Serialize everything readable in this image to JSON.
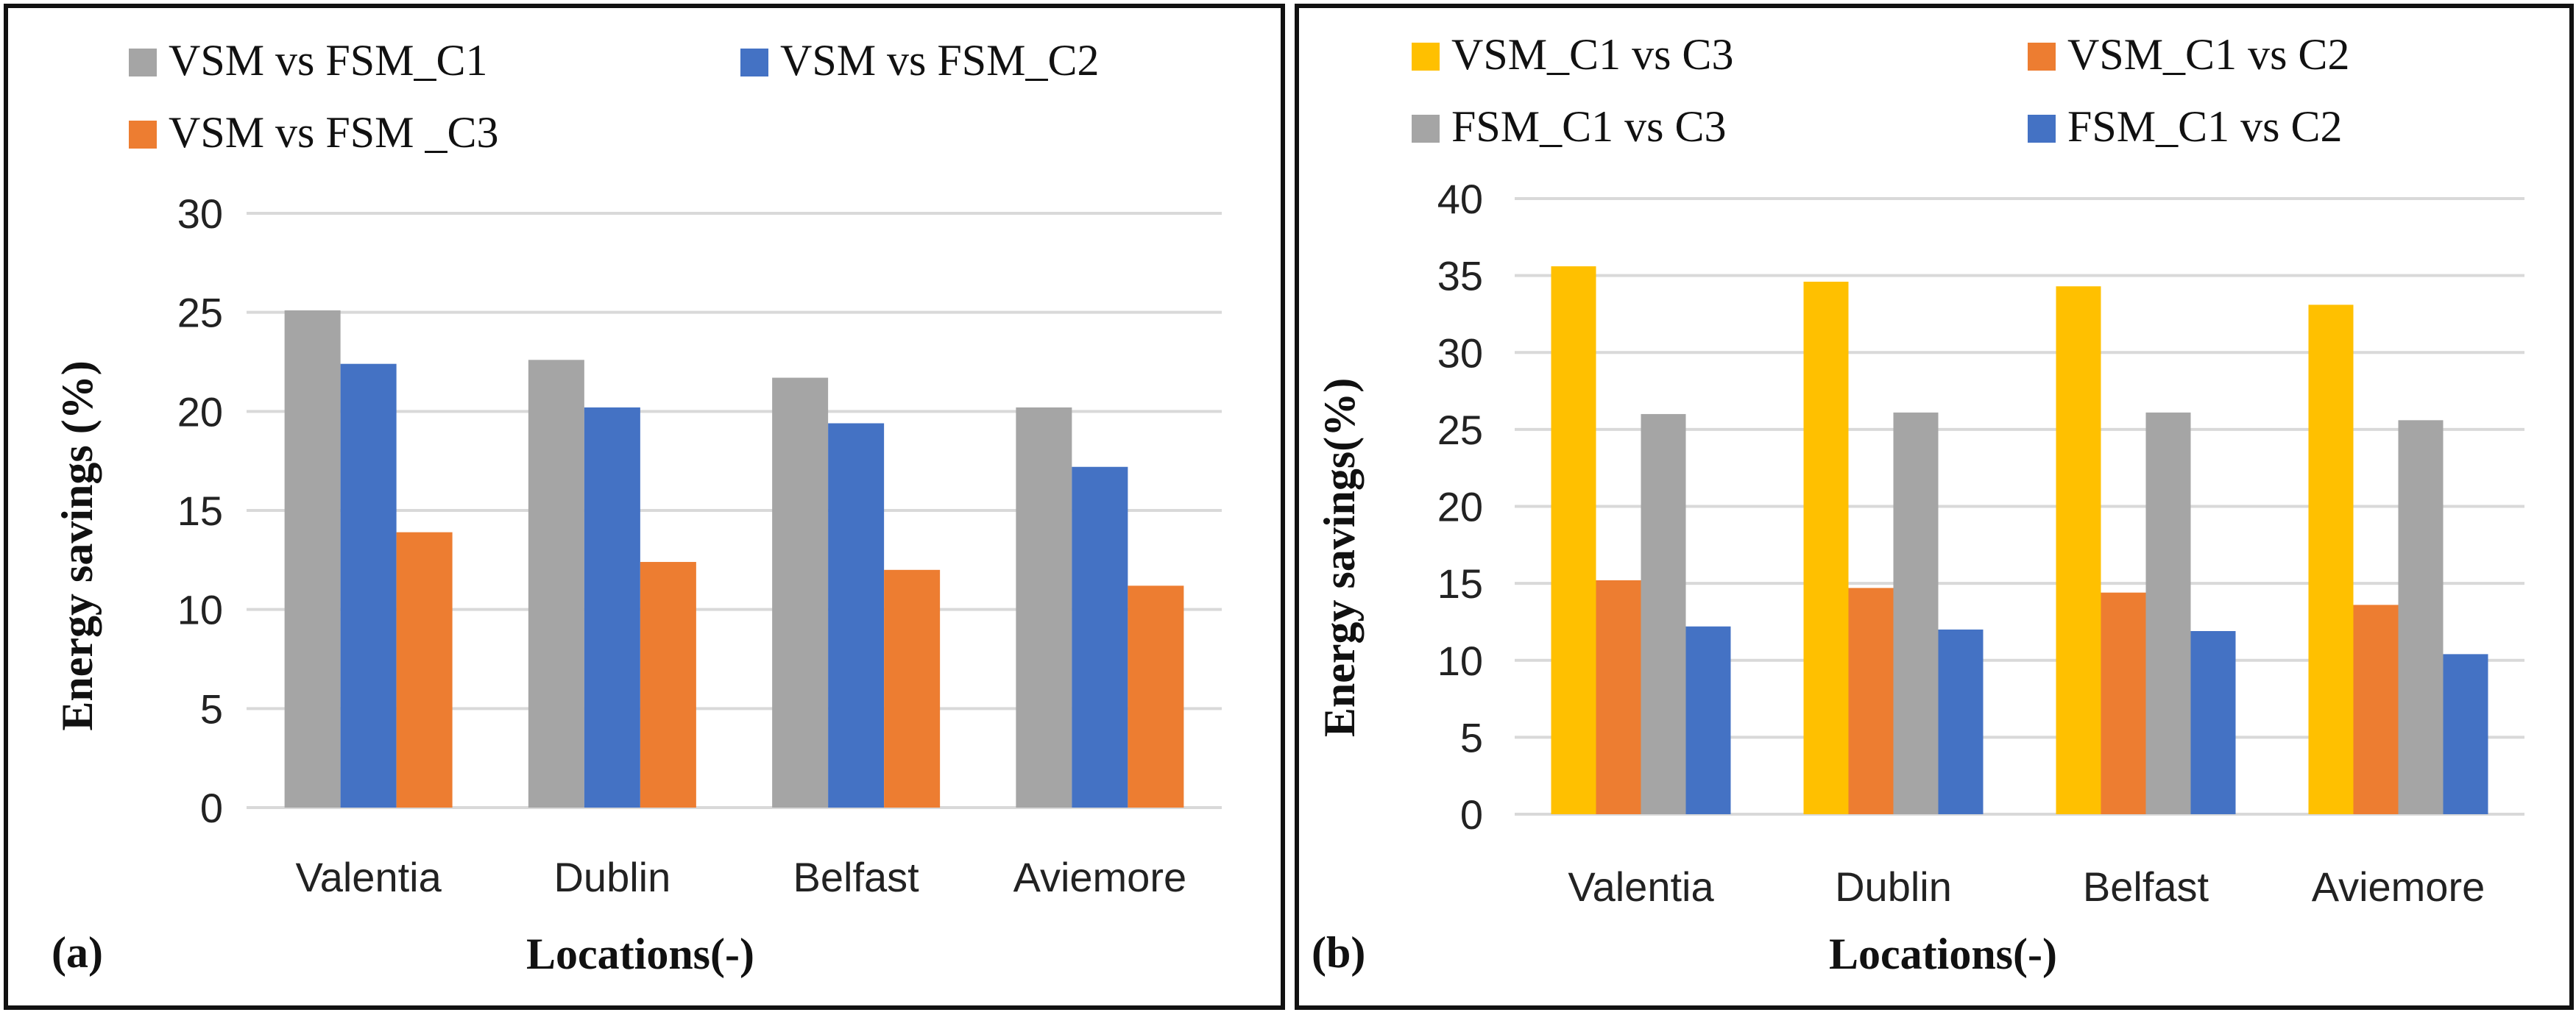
{
  "chart_data": [
    {
      "type": "bar",
      "panel_label": "(a)",
      "categories": [
        "Valentia",
        "Dublin",
        "Belfast",
        "Aviemore"
      ],
      "series": [
        {
          "name": "VSM vs FSM_C1",
          "color": "#A5A5A5",
          "values": [
            25.1,
            22.6,
            21.7,
            20.2
          ]
        },
        {
          "name": "VSM vs FSM_C2",
          "color": "#4472C4",
          "values": [
            22.4,
            20.2,
            19.4,
            17.2
          ]
        },
        {
          "name": "VSM vs FSM _C3",
          "color": "#ED7D31",
          "values": [
            13.9,
            12.4,
            12.0,
            11.2
          ]
        }
      ],
      "xlabel": "Locations(-)",
      "ylabel": "Energy savings (%)",
      "ylim": [
        0,
        30
      ],
      "yticks": [
        0,
        5,
        10,
        15,
        20,
        25,
        30
      ],
      "grid": true,
      "legend": "top"
    },
    {
      "type": "bar",
      "panel_label": "(b)",
      "categories": [
        "Valentia",
        "Dublin",
        "Belfast",
        "Aviemore"
      ],
      "series": [
        {
          "name": "VSM_C1 vs C3",
          "color": "#FFC000",
          "values": [
            35.6,
            34.6,
            34.3,
            33.1
          ]
        },
        {
          "name": "VSM_C1 vs C2",
          "color": "#ED7D31",
          "values": [
            15.2,
            14.7,
            14.4,
            13.6
          ]
        },
        {
          "name": "FSM_C1 vs C3",
          "color": "#A5A5A5",
          "values": [
            26.0,
            26.1,
            26.1,
            25.6
          ]
        },
        {
          "name": "FSM_C1 vs C2",
          "color": "#4472C4",
          "values": [
            12.2,
            12.0,
            11.9,
            10.4
          ]
        }
      ],
      "xlabel": "Locations(-)",
      "ylabel": "Energy savings(%)",
      "ylim": [
        0,
        40
      ],
      "yticks": [
        0,
        5,
        10,
        15,
        20,
        25,
        30,
        35,
        40
      ],
      "grid": true,
      "legend": "top"
    }
  ]
}
